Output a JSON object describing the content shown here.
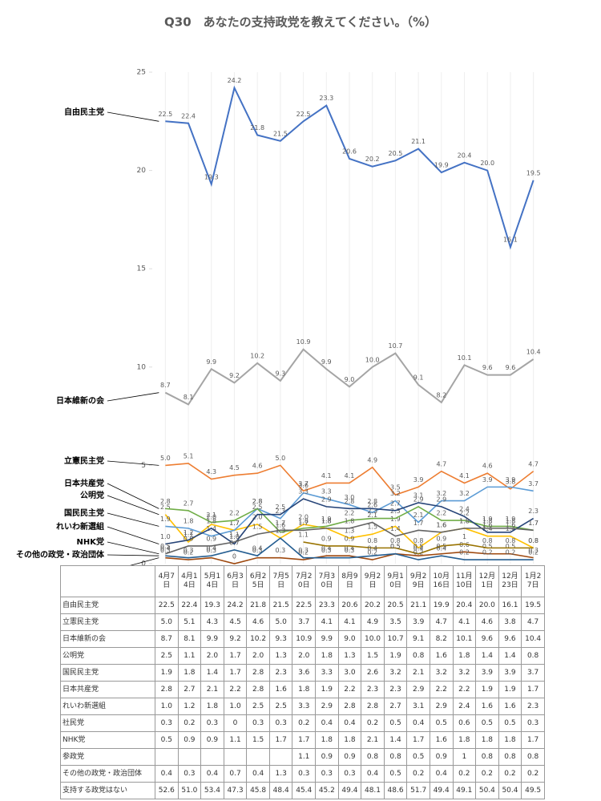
{
  "chart_data": {
    "type": "line",
    "title": "Q30　あなたの支持政党を教えてください。（%）",
    "categories": [
      "4月7日",
      "4月14日",
      "5月14日",
      "6月3日",
      "6月25日",
      "7月5日",
      "7月20日",
      "7月30日",
      "8月9日",
      "9月2日",
      "9月10日",
      "9月29日",
      "10月16日",
      "11月10日",
      "12月1日",
      "12月23日",
      "1月27日"
    ],
    "ylim": [
      0,
      25
    ],
    "yticks": [
      0,
      5,
      10,
      15,
      20,
      25
    ],
    "grid": true,
    "series": [
      {
        "name": "自由民主党",
        "color": "#4472c4",
        "values": [
          22.5,
          22.4,
          19.3,
          24.2,
          21.8,
          21.5,
          22.5,
          23.3,
          20.6,
          20.2,
          20.5,
          21.1,
          19.9,
          20.4,
          20.0,
          16.1,
          19.5
        ],
        "value_labels": [
          "22.5",
          "22.4",
          "19.3",
          "24.2",
          "21.8",
          "21.5",
          "22.5",
          "23.3",
          "20.6",
          "20.2",
          "20.5",
          "21.1",
          "19.9",
          "20.4",
          "20.0",
          "16.1",
          "19.5"
        ]
      },
      {
        "name": "立憲民主党",
        "color": "#ed7d31",
        "values": [
          5.0,
          5.1,
          4.3,
          4.5,
          4.6,
          5.0,
          3.7,
          4.1,
          4.1,
          4.9,
          3.5,
          3.9,
          4.7,
          4.1,
          4.6,
          3.8,
          4.7
        ],
        "value_labels": [
          "5.0",
          "5.1",
          "4.3",
          "4.5",
          "4.6",
          "5.0",
          "3.7",
          "4.1",
          "4.1",
          "4.9",
          "3.5",
          "3.9",
          "4.7",
          "4.1",
          "4.6",
          "3.8",
          "4.7"
        ]
      },
      {
        "name": "日本維新の会",
        "color": "#a5a5a5",
        "values": [
          8.7,
          8.1,
          9.9,
          9.2,
          10.2,
          9.3,
          10.9,
          9.9,
          9.0,
          10.0,
          10.7,
          9.1,
          8.2,
          10.1,
          9.6,
          9.6,
          10.4
        ],
        "value_labels": [
          "8.7",
          "8.1",
          "9.9",
          "9.2",
          "10.2",
          "9.3",
          "10.9",
          "9.9",
          "9.0",
          "10.0",
          "10.7",
          "9.1",
          "8.2",
          "10.1",
          "9.6",
          "9.6",
          "10.4"
        ]
      },
      {
        "name": "公明党",
        "color": "#ffc000",
        "values": [
          2.5,
          1.1,
          2.0,
          1.7,
          2.0,
          1.3,
          2.0,
          1.8,
          1.3,
          1.5,
          1.9,
          0.8,
          1.6,
          1.8,
          1.4,
          1.4,
          0.8
        ],
        "value_labels": [
          "2.5",
          "1.1",
          "2.0",
          "1.7",
          "2.0",
          "1.3",
          "2.0",
          "1.8",
          "1.3",
          "1.5",
          "1.9",
          "0.8",
          "1.6",
          "1.8",
          "1.4",
          "1.4",
          "0.8"
        ]
      },
      {
        "name": "国民民主党",
        "color": "#5b9bd5",
        "values": [
          1.9,
          1.8,
          1.4,
          1.7,
          2.8,
          2.3,
          3.6,
          3.3,
          3.0,
          2.6,
          3.2,
          2.1,
          3.2,
          3.2,
          3.9,
          3.9,
          3.7
        ],
        "value_labels": [
          "1.9",
          "1.8",
          "1.4",
          "1.7",
          "2.8",
          "2.3",
          "3.6",
          "3.3",
          "3.0",
          "2.6",
          "3.2",
          "2.1",
          "3.2",
          "3.2",
          "3.9",
          "3.9",
          "3.7"
        ]
      },
      {
        "name": "日本共産党",
        "color": "#70ad47",
        "values": [
          2.8,
          2.7,
          2.1,
          2.2,
          2.8,
          1.6,
          1.8,
          1.9,
          2.2,
          2.3,
          2.3,
          2.9,
          2.2,
          2.2,
          1.9,
          1.9,
          1.7
        ],
        "value_labels": [
          "2.8",
          "2.7",
          "2.1",
          "2.2",
          "2.8",
          "1.6",
          "1.8",
          "1.9",
          "2.2",
          "2.3",
          "2.3",
          "2.9",
          "2.2",
          "2.2",
          "1.9",
          "1.9",
          "1.7"
        ]
      },
      {
        "name": "れいわ新選組",
        "color": "#264478",
        "values": [
          1.0,
          1.2,
          1.8,
          1.0,
          2.5,
          2.5,
          3.3,
          2.9,
          2.8,
          2.8,
          2.7,
          3.1,
          2.9,
          2.4,
          1.6,
          1.6,
          2.3
        ],
        "value_labels": [
          "1.0",
          "1.2",
          "1.8",
          "1.0",
          "2.5",
          "2.5",
          "3.3",
          "2.9",
          "2.8",
          "2.8",
          "2.7",
          "3.1",
          "2.9",
          "2.4",
          "1.6",
          "1.6",
          "2.3"
        ]
      },
      {
        "name": "社民党",
        "color": "#9e480e",
        "values": [
          0.3,
          0.2,
          0.3,
          0,
          0.3,
          0.3,
          0.2,
          0.4,
          0.4,
          0.2,
          0.5,
          0.4,
          0.5,
          0.6,
          0.5,
          0.5,
          0.3
        ],
        "value_labels": [
          "0.3",
          "0.2",
          "0.3",
          "0",
          "0.3",
          "0.3",
          "0.2",
          "0.4",
          "0.4",
          "0.2",
          "0.5",
          "0.4",
          "0.5",
          "0.6",
          "0.5",
          "0.5",
          "0.3"
        ]
      },
      {
        "name": "NHK党",
        "color": "#636363",
        "values": [
          0.5,
          0.9,
          0.9,
          1.1,
          1.5,
          1.7,
          1.7,
          1.8,
          1.8,
          2.1,
          1.4,
          1.7,
          1.6,
          1.8,
          1.8,
          1.8,
          1.7
        ],
        "value_labels": [
          "0.5",
          "0.9",
          "0.9",
          "1.1",
          "1.5",
          "1.7",
          "1.7",
          "1.8",
          "1.8",
          "2.1",
          "1.4",
          "1.7",
          "1.6",
          "1.8",
          "1.8",
          "1.8",
          "1.7"
        ]
      },
      {
        "name": "参政党",
        "color": "#997300",
        "values": [
          null,
          null,
          null,
          null,
          null,
          null,
          1.1,
          0.9,
          0.9,
          0.8,
          0.8,
          0.5,
          0.9,
          1,
          0.8,
          0.8,
          0.8
        ],
        "value_labels": [
          null,
          null,
          null,
          null,
          null,
          null,
          "1.1",
          "0.9",
          "0.9",
          "0.8",
          "0.8",
          "0.5",
          "0.9",
          "1",
          "0.8",
          "0.8",
          "0.8"
        ]
      },
      {
        "name": "その他の政党・政治団体",
        "color": "#255e91",
        "values": [
          0.4,
          0.3,
          0.4,
          0.7,
          0.4,
          1.3,
          0.3,
          0.3,
          0.3,
          0.4,
          0.5,
          0.2,
          0.4,
          0.2,
          0.2,
          0.2,
          0.2
        ],
        "value_labels": [
          "0.4",
          "0.3",
          "0.4",
          "0.7",
          "0.4",
          "1.3",
          "0.3",
          "0.3",
          "0.3",
          "0.4",
          "0.5",
          "0.2",
          "0.4",
          "0.2",
          "0.2",
          "0.2",
          "0.2"
        ]
      }
    ]
  },
  "table": {
    "rows": [
      {
        "name": "支持する政党はない",
        "values": [
          "52.6",
          "51.0",
          "53.4",
          "47.3",
          "45.8",
          "48.4",
          "45.4",
          "45.2",
          "49.4",
          "48.1",
          "48.6",
          "51.7",
          "49.4",
          "49.1",
          "50.4",
          "50.4",
          "49.5"
        ]
      }
    ]
  }
}
